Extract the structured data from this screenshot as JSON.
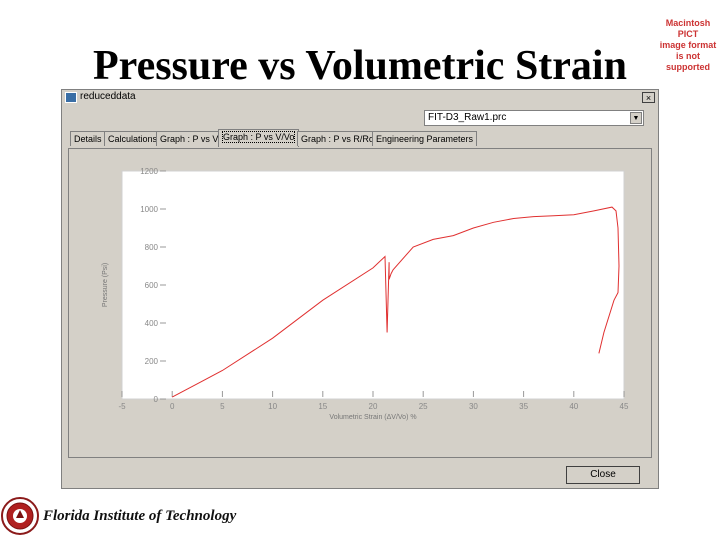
{
  "slide": {
    "title": "Pressure vs Volumetric Strain",
    "pict_note": [
      "Macintosh PICT",
      "image format",
      "is not supported"
    ],
    "logo_text": "Florida Institute of Technology"
  },
  "window": {
    "title": "reduceddata",
    "close_symbol": "×",
    "file_select_value": "FIT-D3_Raw1.prc",
    "tabs": [
      {
        "label": "Details"
      },
      {
        "label": "Calculations"
      },
      {
        "label": "Graph : P vs V"
      },
      {
        "label": "Graph : P vs V/Vo"
      },
      {
        "label": "Graph : P vs R/Ro"
      },
      {
        "label": "Engineering Parameters"
      }
    ],
    "active_tab": 3,
    "close_button_label": "Close"
  },
  "chart_data": {
    "type": "line",
    "xlabel": "Volumetric Strain (ΔV/Vo) %",
    "ylabel": "Pressure (Psi)",
    "xlim": [
      -5,
      45
    ],
    "ylim": [
      0,
      1200
    ],
    "xticks": [
      "-5",
      "0",
      "5",
      "10",
      "15",
      "20",
      "25",
      "30",
      "35",
      "40",
      "45"
    ],
    "yticks": [
      "0",
      "200",
      "400",
      "600",
      "800",
      "1000",
      "1200"
    ],
    "series_color": "#e03030",
    "series": [
      {
        "x": [
          0,
          5,
          10,
          15,
          20,
          21.2,
          21.4,
          21.6,
          21.6,
          21.8,
          22,
          24,
          26,
          28,
          30,
          32,
          34,
          36,
          38,
          40,
          42,
          43.8,
          44.2,
          44.4,
          44.5,
          44.4,
          44,
          43,
          42.5
        ],
        "y": [
          10,
          150,
          320,
          520,
          690,
          750,
          350,
          720,
          630,
          660,
          680,
          800,
          840,
          860,
          900,
          930,
          950,
          960,
          965,
          970,
          990,
          1010,
          990,
          900,
          700,
          560,
          520,
          350,
          240
        ]
      }
    ]
  }
}
